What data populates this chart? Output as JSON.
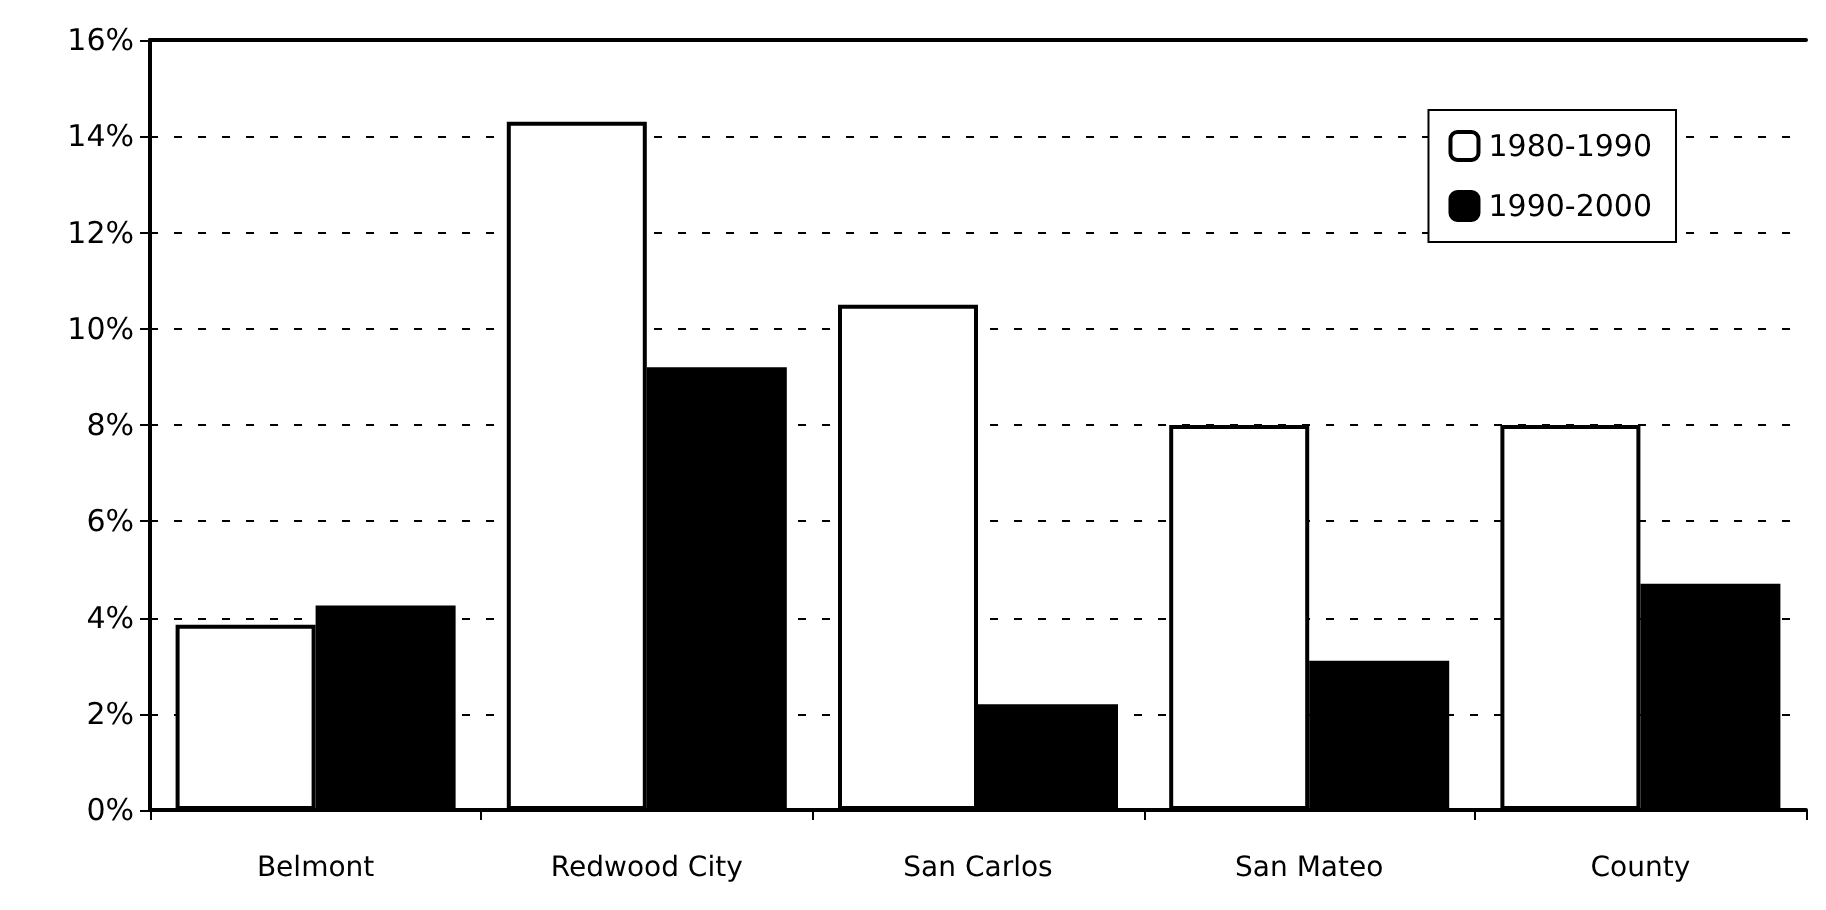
{
  "chart_data": {
    "type": "bar",
    "categories": [
      "Belmont",
      "Redwood City",
      "San Carlos",
      "San Mateo",
      "County"
    ],
    "series": [
      {
        "name": "1980-1990",
        "color": "#ffffff",
        "values": [
          3.85,
          14.3,
          10.5,
          8.0,
          8.0
        ]
      },
      {
        "name": "1990-2000",
        "color": "#000000",
        "values": [
          4.25,
          9.2,
          2.2,
          3.1,
          4.7
        ]
      }
    ],
    "ylim": [
      0,
      16
    ],
    "yticks": [
      {
        "value": 0,
        "label": "0%"
      },
      {
        "value": 2,
        "label": "2%"
      },
      {
        "value": 4,
        "label": "4%"
      },
      {
        "value": 6,
        "label": "6%"
      },
      {
        "value": 8,
        "label": "8%"
      },
      {
        "value": 10,
        "label": "10%"
      },
      {
        "value": 12,
        "label": "12%"
      },
      {
        "value": 14,
        "label": "14%"
      },
      {
        "value": 16,
        "label": "16%"
      }
    ],
    "grid": "y",
    "legend": "top right"
  }
}
